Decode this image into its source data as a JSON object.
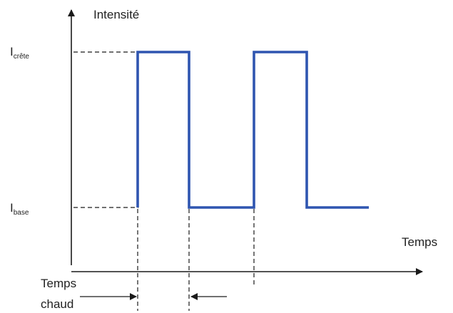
{
  "diagram": {
    "y_axis_label": "Intensité",
    "x_axis_label": "Temps",
    "peak_label": {
      "main": "I",
      "sub": "crête"
    },
    "base_label": {
      "main": "I",
      "sub": "base"
    },
    "hot_time_label": {
      "line1": "Temps",
      "line2": "chaud"
    },
    "colors": {
      "waveform": "#2f55b0",
      "axes": "#1a1a1a",
      "dashes": "#1a1a1a",
      "text": "#222222"
    }
  }
}
